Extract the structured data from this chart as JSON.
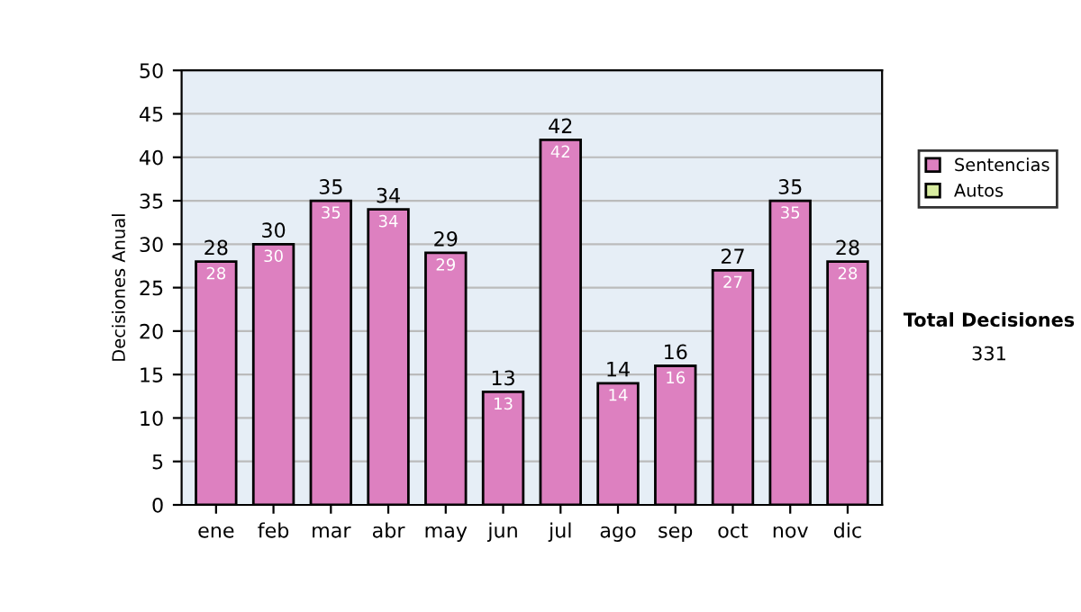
{
  "chart_data": {
    "type": "bar",
    "stacked": true,
    "ylabel": "Decisiones Anual",
    "categories": [
      "ene",
      "feb",
      "mar",
      "abr",
      "may",
      "jun",
      "jul",
      "ago",
      "sep",
      "oct",
      "nov",
      "dic"
    ],
    "series": [
      {
        "name": "Sentencias",
        "color": "#dd80c0",
        "values": [
          28,
          30,
          35,
          34,
          29,
          13,
          42,
          14,
          16,
          27,
          35,
          28
        ],
        "value_labels": [
          "28",
          "30",
          "35",
          "34",
          "29",
          "13",
          "42",
          "14",
          "16",
          "27",
          "35",
          "28"
        ]
      },
      {
        "name": "Autos",
        "color": "#d8eca0",
        "values": [
          null,
          null,
          null,
          null,
          null,
          null,
          null,
          null,
          null,
          null,
          null,
          null
        ]
      }
    ],
    "totals": [
      "28",
      "30",
      "35",
      "34",
      "29",
      "13",
      "42",
      "14",
      "16",
      "27",
      "35",
      "28"
    ],
    "ylim": [
      0,
      50
    ],
    "yticks": [
      0,
      5,
      10,
      15,
      20,
      25,
      30,
      35,
      40,
      45,
      50
    ],
    "grid": "y",
    "legend": "right",
    "annotations": [
      "Total Decisiones",
      "331"
    ]
  }
}
